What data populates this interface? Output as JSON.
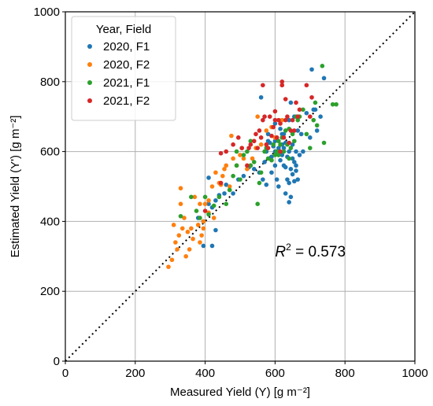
{
  "chart_data": {
    "type": "scatter",
    "xlabel": "Measured Yield (Y) [g m⁻²]",
    "ylabel": "Estimated Yield (Y') [g m⁻²]",
    "xlim": [
      0,
      1000
    ],
    "ylim": [
      0,
      1000
    ],
    "xticks": [
      0,
      200,
      400,
      600,
      800,
      1000
    ],
    "yticks": [
      0,
      200,
      400,
      600,
      800,
      1000
    ],
    "grid": true,
    "legend_title": "Year, Field",
    "legend_position": "top-left",
    "reference_line": "1:1 dotted",
    "annotation": {
      "label": "R",
      "superscript": "2",
      "value_text": " = 0.573"
    },
    "series": [
      {
        "name": "2020, F1",
        "color": "#1f77b4",
        "points": [
          [
            380,
            410
          ],
          [
            395,
            400
          ],
          [
            410,
            450
          ],
          [
            410,
            525
          ],
          [
            420,
            440
          ],
          [
            430,
            460
          ],
          [
            440,
            475
          ],
          [
            455,
            480
          ],
          [
            460,
            505
          ],
          [
            470,
            490
          ],
          [
            480,
            480
          ],
          [
            495,
            520
          ],
          [
            510,
            530
          ],
          [
            525,
            555
          ],
          [
            540,
            550
          ],
          [
            555,
            540
          ],
          [
            570,
            570
          ],
          [
            575,
            600
          ],
          [
            580,
            630
          ],
          [
            585,
            625
          ],
          [
            590,
            585
          ],
          [
            595,
            615
          ],
          [
            600,
            560
          ],
          [
            600,
            600
          ],
          [
            605,
            640
          ],
          [
            610,
            610
          ],
          [
            615,
            575
          ],
          [
            620,
            590
          ],
          [
            620,
            620
          ],
          [
            625,
            560
          ],
          [
            625,
            650
          ],
          [
            630,
            480
          ],
          [
            630,
            625
          ],
          [
            635,
            520
          ],
          [
            640,
            510
          ],
          [
            640,
            600
          ],
          [
            645,
            470
          ],
          [
            645,
            550
          ],
          [
            650,
            580
          ],
          [
            650,
            620
          ],
          [
            655,
            570
          ],
          [
            660,
            560
          ],
          [
            665,
            520
          ],
          [
            665,
            660
          ],
          [
            670,
            590
          ],
          [
            680,
            600
          ],
          [
            690,
            710
          ],
          [
            700,
            640
          ],
          [
            705,
            835
          ],
          [
            710,
            720
          ],
          [
            715,
            720
          ],
          [
            720,
            660
          ],
          [
            730,
            700
          ],
          [
            740,
            810
          ],
          [
            560,
            755
          ],
          [
            600,
            630
          ],
          [
            615,
            665
          ],
          [
            625,
            610
          ],
          [
            635,
            585
          ],
          [
            645,
            740
          ],
          [
            650,
            535
          ],
          [
            655,
            515
          ],
          [
            660,
            545
          ],
          [
            630,
            555
          ],
          [
            605,
            520
          ],
          [
            575,
            505
          ],
          [
            590,
            540
          ],
          [
            565,
            520
          ],
          [
            660,
            600
          ],
          [
            675,
            650
          ],
          [
            610,
            500
          ],
          [
            640,
            455
          ],
          [
            420,
            330
          ],
          [
            395,
            330
          ],
          [
            430,
            375
          ],
          [
            620,
            650
          ],
          [
            580,
            650
          ],
          [
            600,
            680
          ],
          [
            640,
            690
          ],
          [
            655,
            700
          ]
        ]
      },
      {
        "name": "2020, F2",
        "color": "#ff7f0e",
        "points": [
          [
            295,
            270
          ],
          [
            305,
            290
          ],
          [
            310,
            390
          ],
          [
            315,
            340
          ],
          [
            320,
            320
          ],
          [
            325,
            360
          ],
          [
            330,
            495
          ],
          [
            330,
            450
          ],
          [
            335,
            380
          ],
          [
            340,
            410
          ],
          [
            345,
            300
          ],
          [
            350,
            370
          ],
          [
            355,
            320
          ],
          [
            360,
            380
          ],
          [
            365,
            350
          ],
          [
            370,
            470
          ],
          [
            380,
            390
          ],
          [
            385,
            340
          ],
          [
            390,
            360
          ],
          [
            395,
            400
          ],
          [
            400,
            450
          ],
          [
            410,
            460
          ],
          [
            420,
            500
          ],
          [
            430,
            540
          ],
          [
            440,
            510
          ],
          [
            445,
            505
          ],
          [
            450,
            530
          ],
          [
            460,
            560
          ],
          [
            470,
            500
          ],
          [
            475,
            645
          ],
          [
            480,
            580
          ],
          [
            490,
            560
          ],
          [
            500,
            590
          ],
          [
            505,
            610
          ],
          [
            510,
            580
          ],
          [
            520,
            550
          ],
          [
            530,
            560
          ],
          [
            535,
            580
          ],
          [
            545,
            610
          ],
          [
            550,
            700
          ],
          [
            560,
            620
          ],
          [
            575,
            660
          ],
          [
            590,
            670
          ],
          [
            600,
            640
          ],
          [
            620,
            690
          ],
          [
            395,
            380
          ],
          [
            410,
            425
          ],
          [
            425,
            410
          ],
          [
            455,
            550
          ],
          [
            385,
            450
          ]
        ]
      },
      {
        "name": "2021, F1",
        "color": "#2ca02c",
        "points": [
          [
            330,
            415
          ],
          [
            360,
            470
          ],
          [
            375,
            430
          ],
          [
            385,
            410
          ],
          [
            400,
            470
          ],
          [
            410,
            420
          ],
          [
            425,
            445
          ],
          [
            440,
            470
          ],
          [
            460,
            450
          ],
          [
            470,
            490
          ],
          [
            480,
            530
          ],
          [
            490,
            560
          ],
          [
            500,
            520
          ],
          [
            510,
            590
          ],
          [
            520,
            600
          ],
          [
            530,
            560
          ],
          [
            540,
            570
          ],
          [
            550,
            450
          ],
          [
            555,
            510
          ],
          [
            560,
            540
          ],
          [
            570,
            600
          ],
          [
            580,
            580
          ],
          [
            590,
            575
          ],
          [
            595,
            620
          ],
          [
            600,
            590
          ],
          [
            605,
            600
          ],
          [
            610,
            630
          ],
          [
            615,
            620
          ],
          [
            620,
            640
          ],
          [
            625,
            600
          ],
          [
            630,
            660
          ],
          [
            635,
            620
          ],
          [
            640,
            580
          ],
          [
            640,
            665
          ],
          [
            645,
            610
          ],
          [
            650,
            650
          ],
          [
            655,
            630
          ],
          [
            660,
            700
          ],
          [
            665,
            690
          ],
          [
            670,
            700
          ],
          [
            680,
            720
          ],
          [
            690,
            650
          ],
          [
            700,
            610
          ],
          [
            710,
            690
          ],
          [
            715,
            740
          ],
          [
            720,
            675
          ],
          [
            735,
            845
          ],
          [
            740,
            625
          ],
          [
            765,
            735
          ],
          [
            775,
            735
          ],
          [
            490,
            600
          ],
          [
            530,
            630
          ],
          [
            575,
            610
          ],
          [
            610,
            590
          ]
        ]
      },
      {
        "name": "2021, F2",
        "color": "#d62728",
        "points": [
          [
            400,
            430
          ],
          [
            445,
            510
          ],
          [
            445,
            595
          ],
          [
            460,
            600
          ],
          [
            480,
            620
          ],
          [
            495,
            640
          ],
          [
            505,
            610
          ],
          [
            520,
            560
          ],
          [
            525,
            610
          ],
          [
            530,
            620
          ],
          [
            540,
            630
          ],
          [
            545,
            650
          ],
          [
            550,
            610
          ],
          [
            555,
            660
          ],
          [
            560,
            640
          ],
          [
            565,
            690
          ],
          [
            570,
            700
          ],
          [
            575,
            620
          ],
          [
            580,
            610
          ],
          [
            585,
            700
          ],
          [
            590,
            645
          ],
          [
            595,
            670
          ],
          [
            600,
            690
          ],
          [
            605,
            640
          ],
          [
            610,
            690
          ],
          [
            615,
            600
          ],
          [
            615,
            680
          ],
          [
            620,
            790
          ],
          [
            625,
            640
          ],
          [
            630,
            690
          ],
          [
            630,
            750
          ],
          [
            635,
            700
          ],
          [
            640,
            625
          ],
          [
            645,
            660
          ],
          [
            650,
            690
          ],
          [
            655,
            660
          ],
          [
            660,
            740
          ],
          [
            665,
            700
          ],
          [
            670,
            720
          ],
          [
            690,
            790
          ],
          [
            700,
            700
          ],
          [
            705,
            755
          ],
          [
            565,
            790
          ],
          [
            620,
            800
          ],
          [
            600,
            715
          ]
        ]
      }
    ]
  }
}
